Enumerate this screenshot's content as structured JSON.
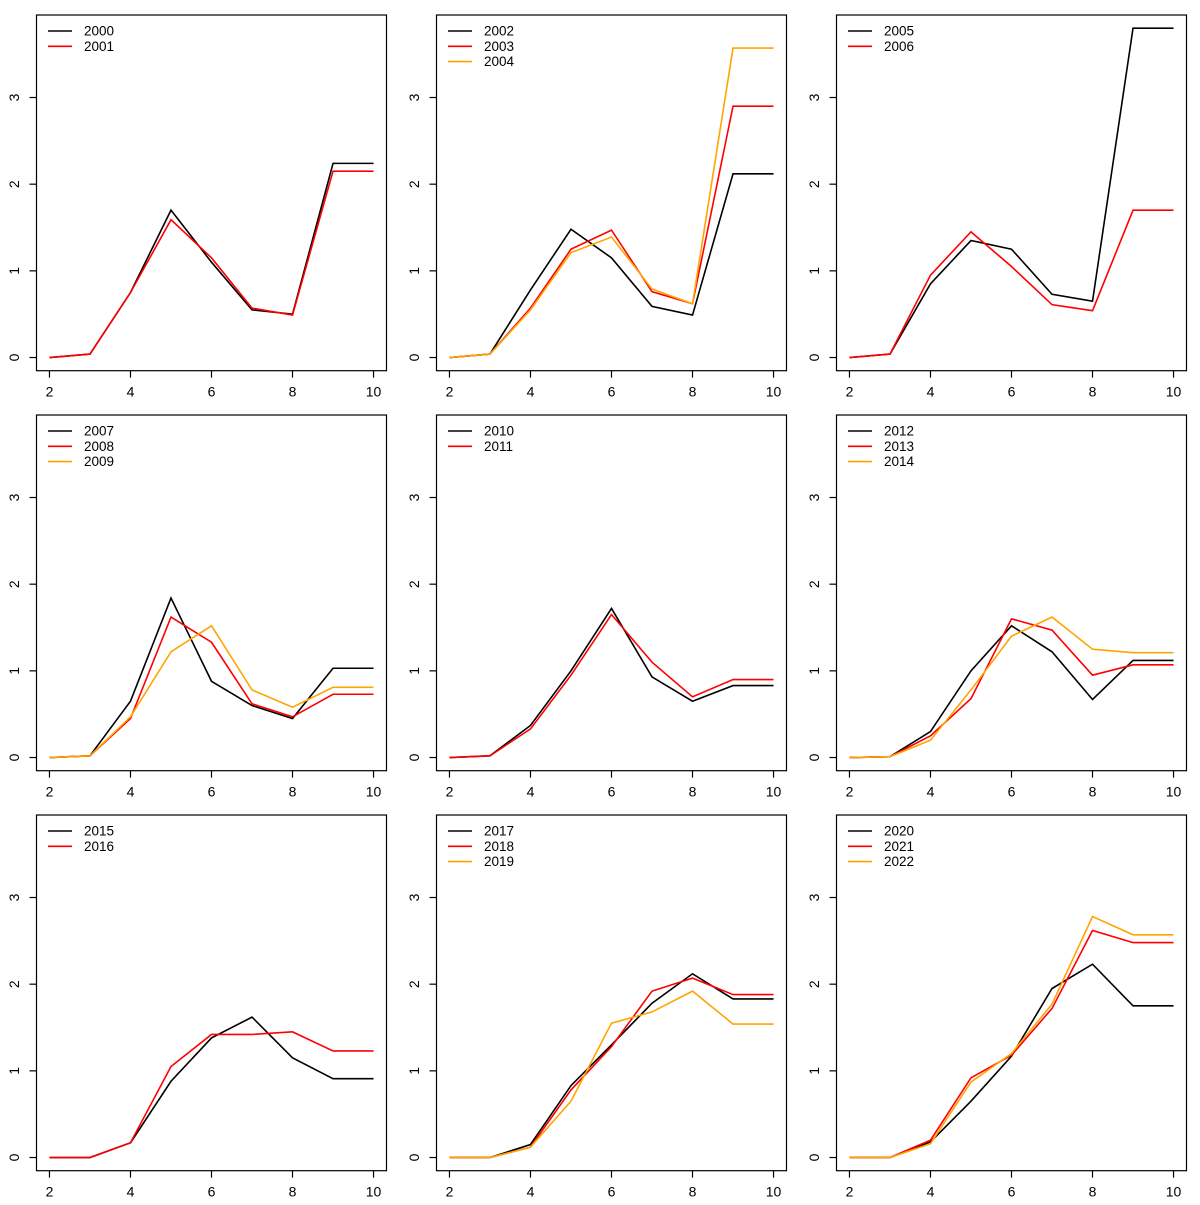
{
  "palette": {
    "black": "#000000",
    "red": "#FF0000",
    "orange": "#FFA500",
    "axis": "#000000",
    "background": "#FFFFFF"
  },
  "axes": {
    "x_ticks": [
      "2",
      "4",
      "6",
      "8",
      "10"
    ],
    "x_tick_values": [
      2,
      4,
      6,
      8,
      10
    ],
    "y_ticks": [
      "0",
      "1",
      "2",
      "3"
    ],
    "y_tick_values": [
      0,
      1,
      2,
      3
    ],
    "xlim": [
      2,
      10
    ],
    "ylim": [
      0,
      3.8
    ],
    "expand_frac": 0.04,
    "grid": "off",
    "legend_position": "top-left"
  },
  "chart_data": [
    {
      "type": "line",
      "x": [
        2,
        3,
        4,
        5,
        6,
        7,
        8,
        9,
        10
      ],
      "series": [
        {
          "name": "2000",
          "color": "black",
          "values": [
            0.0,
            0.04,
            0.75,
            1.7,
            1.1,
            0.55,
            0.5,
            2.24,
            2.24
          ]
        },
        {
          "name": "2001",
          "color": "red",
          "values": [
            0.0,
            0.04,
            0.75,
            1.59,
            1.15,
            0.57,
            0.49,
            2.15,
            2.15
          ]
        }
      ]
    },
    {
      "type": "line",
      "x": [
        2,
        3,
        4,
        5,
        6,
        7,
        8,
        9,
        10
      ],
      "series": [
        {
          "name": "2002",
          "color": "black",
          "values": [
            0.0,
            0.04,
            0.78,
            1.48,
            1.15,
            0.59,
            0.49,
            2.12,
            2.12
          ]
        },
        {
          "name": "2003",
          "color": "red",
          "values": [
            0.0,
            0.04,
            0.57,
            1.25,
            1.47,
            0.76,
            0.62,
            2.9,
            2.9
          ]
        },
        {
          "name": "2004",
          "color": "orange",
          "values": [
            0.0,
            0.04,
            0.55,
            1.21,
            1.39,
            0.79,
            0.62,
            3.57,
            3.57
          ]
        }
      ]
    },
    {
      "type": "line",
      "x": [
        2,
        3,
        4,
        5,
        6,
        7,
        8,
        9,
        10
      ],
      "series": [
        {
          "name": "2005",
          "color": "black",
          "values": [
            0.0,
            0.04,
            0.85,
            1.35,
            1.25,
            0.73,
            0.65,
            3.8,
            3.8
          ]
        },
        {
          "name": "2006",
          "color": "red",
          "values": [
            0.0,
            0.04,
            0.95,
            1.45,
            1.05,
            0.61,
            0.54,
            1.7,
            1.7
          ]
        }
      ]
    },
    {
      "type": "line",
      "x": [
        2,
        3,
        4,
        5,
        6,
        7,
        8,
        9,
        10
      ],
      "series": [
        {
          "name": "2007",
          "color": "black",
          "values": [
            0.0,
            0.02,
            0.65,
            1.84,
            0.88,
            0.6,
            0.45,
            1.03,
            1.03
          ]
        },
        {
          "name": "2008",
          "color": "red",
          "values": [
            0.0,
            0.02,
            0.45,
            1.62,
            1.33,
            0.62,
            0.47,
            0.73,
            0.73
          ]
        },
        {
          "name": "2009",
          "color": "orange",
          "values": [
            0.0,
            0.02,
            0.47,
            1.22,
            1.52,
            0.78,
            0.58,
            0.81,
            0.81
          ]
        }
      ]
    },
    {
      "type": "line",
      "x": [
        2,
        3,
        4,
        5,
        6,
        7,
        8,
        9,
        10
      ],
      "series": [
        {
          "name": "2010",
          "color": "black",
          "values": [
            0.0,
            0.02,
            0.37,
            1.0,
            1.72,
            0.93,
            0.65,
            0.83,
            0.83
          ]
        },
        {
          "name": "2011",
          "color": "red",
          "values": [
            0.0,
            0.02,
            0.33,
            0.95,
            1.65,
            1.1,
            0.7,
            0.9,
            0.9
          ]
        }
      ]
    },
    {
      "type": "line",
      "x": [
        2,
        3,
        4,
        5,
        6,
        7,
        8,
        9,
        10
      ],
      "series": [
        {
          "name": "2012",
          "color": "black",
          "values": [
            0.0,
            0.01,
            0.3,
            1.0,
            1.52,
            1.22,
            0.67,
            1.12,
            1.12
          ]
        },
        {
          "name": "2013",
          "color": "red",
          "values": [
            0.0,
            0.01,
            0.25,
            0.68,
            1.6,
            1.47,
            0.95,
            1.07,
            1.07
          ]
        },
        {
          "name": "2014",
          "color": "orange",
          "values": [
            0.0,
            0.01,
            0.2,
            0.78,
            1.4,
            1.62,
            1.25,
            1.21,
            1.21
          ]
        }
      ]
    },
    {
      "type": "line",
      "x": [
        2,
        3,
        4,
        5,
        6,
        7,
        8,
        9,
        10
      ],
      "series": [
        {
          "name": "2015",
          "color": "black",
          "values": [
            0.0,
            0.0,
            0.17,
            0.88,
            1.38,
            1.62,
            1.15,
            0.91,
            0.91
          ]
        },
        {
          "name": "2016",
          "color": "red",
          "values": [
            0.0,
            0.0,
            0.17,
            1.05,
            1.42,
            1.42,
            1.45,
            1.23,
            1.23
          ]
        }
      ]
    },
    {
      "type": "line",
      "x": [
        2,
        3,
        4,
        5,
        6,
        7,
        8,
        9,
        10
      ],
      "series": [
        {
          "name": "2017",
          "color": "black",
          "values": [
            0.0,
            0.0,
            0.15,
            0.83,
            1.3,
            1.78,
            2.12,
            1.83,
            1.83
          ]
        },
        {
          "name": "2018",
          "color": "red",
          "values": [
            0.0,
            0.0,
            0.12,
            0.78,
            1.28,
            1.92,
            2.07,
            1.88,
            1.88
          ]
        },
        {
          "name": "2019",
          "color": "orange",
          "values": [
            0.0,
            0.0,
            0.12,
            0.65,
            1.55,
            1.68,
            1.92,
            1.54,
            1.54
          ]
        }
      ]
    },
    {
      "type": "line",
      "x": [
        2,
        3,
        4,
        5,
        6,
        7,
        8,
        9,
        10
      ],
      "series": [
        {
          "name": "2020",
          "color": "black",
          "values": [
            0.0,
            0.0,
            0.18,
            0.65,
            1.17,
            1.95,
            2.23,
            1.75,
            1.75
          ]
        },
        {
          "name": "2021",
          "color": "red",
          "values": [
            0.0,
            0.0,
            0.2,
            0.92,
            1.18,
            1.72,
            2.62,
            2.48,
            2.48
          ]
        },
        {
          "name": "2022",
          "color": "orange",
          "values": [
            0.0,
            0.0,
            0.16,
            0.87,
            1.2,
            1.77,
            2.78,
            2.57,
            2.57
          ]
        }
      ]
    }
  ]
}
